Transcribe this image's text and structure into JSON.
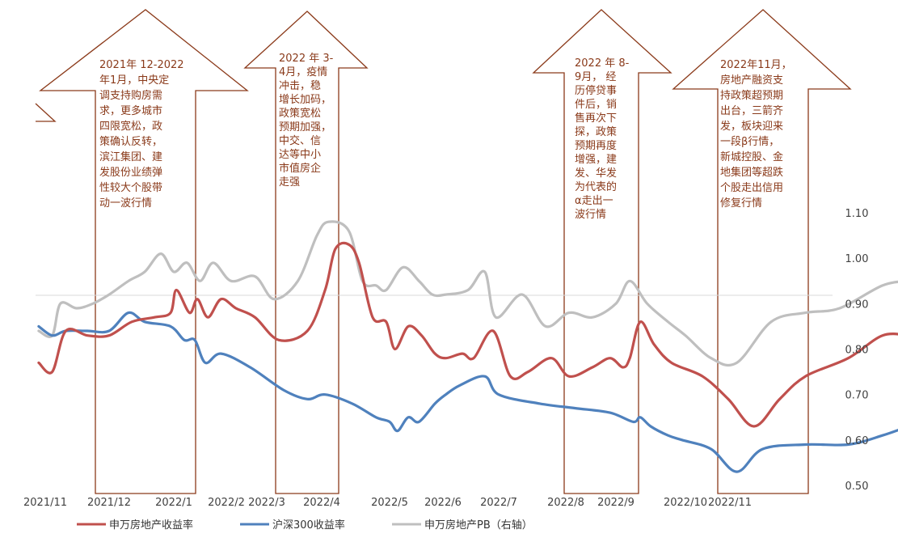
{
  "chart_data": {
    "type": "line",
    "title": "",
    "xlabel": "",
    "ylabel": "",
    "grid": false,
    "legend_position": "bottom",
    "x_tick_labels": [
      "2021/11",
      "2021/12",
      "2022/1",
      "2022/2",
      "2022/3",
      "2022/4",
      "2022/5",
      "2022/6",
      "2022/7",
      "2022/8",
      "2022/9",
      "2022/10",
      "2022/11"
    ],
    "y_right": {
      "ylim": [
        0.5,
        1.1
      ],
      "ticks": [
        "1.10",
        "1.00",
        "0.90",
        "0.80",
        "0.70",
        "0.60",
        "0.50"
      ]
    },
    "series": [
      {
        "name": "申万房地产收益率",
        "color": "#C0504D",
        "points": [
          [
            10.7,
            0.77
          ],
          [
            10.95,
            0.75
          ],
          [
            11.2,
            0.84
          ],
          [
            11.6,
            0.83
          ],
          [
            12.0,
            0.83
          ],
          [
            12.35,
            0.86
          ],
          [
            12.7,
            0.87
          ],
          [
            12.95,
            0.88
          ],
          [
            13.05,
            0.93
          ],
          [
            13.3,
            0.88
          ],
          [
            13.45,
            0.91
          ],
          [
            13.65,
            0.87
          ],
          [
            13.9,
            0.91
          ],
          [
            14.1,
            0.89
          ],
          [
            14.3,
            0.87
          ],
          [
            14.55,
            0.82
          ],
          [
            14.85,
            0.84
          ],
          [
            15.05,
            0.93
          ],
          [
            15.2,
            1.02
          ],
          [
            15.4,
            1.03
          ],
          [
            15.55,
            0.99
          ],
          [
            15.75,
            0.87
          ],
          [
            15.95,
            0.86
          ],
          [
            16.1,
            0.8
          ],
          [
            16.35,
            0.85
          ],
          [
            16.6,
            0.83
          ],
          [
            16.85,
            0.79
          ],
          [
            17.05,
            0.78
          ],
          [
            17.35,
            0.79
          ],
          [
            17.55,
            0.78
          ],
          [
            17.9,
            0.84
          ],
          [
            18.1,
            0.74
          ],
          [
            18.25,
            0.75
          ],
          [
            18.45,
            0.78
          ],
          [
            18.6,
            0.74
          ],
          [
            18.8,
            0.76
          ],
          [
            18.95,
            0.78
          ],
          [
            19.1,
            0.76
          ],
          [
            19.2,
            0.78
          ],
          [
            19.35,
            0.86
          ],
          [
            19.55,
            0.81
          ],
          [
            19.8,
            0.77
          ],
          [
            20.1,
            0.74
          ],
          [
            20.25,
            0.69
          ],
          [
            20.4,
            0.63
          ],
          [
            20.55,
            0.69
          ],
          [
            20.7,
            0.74
          ],
          [
            20.95,
            0.78
          ],
          [
            21.15,
            0.83
          ],
          [
            21.3,
            0.83
          ]
        ]
      },
      {
        "name": "沪深300收益率",
        "color": "#4F81BD",
        "points": [
          [
            10.7,
            0.85
          ],
          [
            10.95,
            0.83
          ],
          [
            11.2,
            0.84
          ],
          [
            11.6,
            0.84
          ],
          [
            12.0,
            0.84
          ],
          [
            12.3,
            0.88
          ],
          [
            12.55,
            0.86
          ],
          [
            12.95,
            0.85
          ],
          [
            13.2,
            0.82
          ],
          [
            13.4,
            0.82
          ],
          [
            13.6,
            0.77
          ],
          [
            13.9,
            0.79
          ],
          [
            14.25,
            0.76
          ],
          [
            14.6,
            0.71
          ],
          [
            14.85,
            0.69
          ],
          [
            15.05,
            0.7
          ],
          [
            15.45,
            0.68
          ],
          [
            15.8,
            0.65
          ],
          [
            16.0,
            0.64
          ],
          [
            16.15,
            0.62
          ],
          [
            16.35,
            0.65
          ],
          [
            16.55,
            0.64
          ],
          [
            16.85,
            0.68
          ],
          [
            17.05,
            0.7
          ],
          [
            17.3,
            0.72
          ],
          [
            17.75,
            0.74
          ],
          [
            18.0,
            0.7
          ],
          [
            18.35,
            0.68
          ],
          [
            18.65,
            0.67
          ],
          [
            18.95,
            0.66
          ],
          [
            19.25,
            0.64
          ],
          [
            19.35,
            0.65
          ],
          [
            19.5,
            0.63
          ],
          [
            19.75,
            0.61
          ],
          [
            19.95,
            0.6
          ],
          [
            20.15,
            0.58
          ],
          [
            20.3,
            0.53
          ],
          [
            20.45,
            0.58
          ],
          [
            20.7,
            0.59
          ],
          [
            20.95,
            0.59
          ],
          [
            21.15,
            0.61
          ],
          [
            21.3,
            0.63
          ]
        ]
      },
      {
        "name": "申万房地产PB（右轴）",
        "color": "#BFBFBF",
        "points": [
          [
            10.7,
            0.84
          ],
          [
            10.95,
            0.83
          ],
          [
            11.1,
            0.9
          ],
          [
            11.4,
            0.89
          ],
          [
            11.7,
            0.9
          ],
          [
            12.0,
            0.92
          ],
          [
            12.3,
            0.95
          ],
          [
            12.55,
            0.97
          ],
          [
            12.8,
            1.01
          ],
          [
            13.0,
            0.97
          ],
          [
            13.25,
            0.99
          ],
          [
            13.5,
            0.95
          ],
          [
            13.75,
            0.99
          ],
          [
            14.05,
            0.95
          ],
          [
            14.3,
            0.96
          ],
          [
            14.5,
            0.91
          ],
          [
            14.75,
            0.95
          ],
          [
            14.95,
            1.05
          ],
          [
            15.1,
            1.08
          ],
          [
            15.4,
            1.06
          ],
          [
            15.6,
            0.95
          ],
          [
            15.8,
            0.94
          ],
          [
            15.95,
            0.93
          ],
          [
            16.25,
            0.98
          ],
          [
            16.55,
            0.95
          ],
          [
            16.8,
            0.92
          ],
          [
            17.05,
            0.92
          ],
          [
            17.45,
            0.93
          ],
          [
            17.75,
            0.97
          ],
          [
            17.95,
            0.87
          ],
          [
            18.2,
            0.92
          ],
          [
            18.4,
            0.85
          ],
          [
            18.6,
            0.88
          ],
          [
            18.8,
            0.87
          ],
          [
            19.0,
            0.9
          ],
          [
            19.2,
            0.95
          ],
          [
            19.45,
            0.9
          ],
          [
            19.75,
            0.86
          ],
          [
            20.0,
            0.83
          ],
          [
            20.15,
            0.78
          ],
          [
            20.3,
            0.77
          ],
          [
            20.5,
            0.86
          ],
          [
            20.7,
            0.88
          ],
          [
            20.9,
            0.89
          ],
          [
            21.15,
            0.94
          ],
          [
            21.3,
            0.95
          ]
        ]
      }
    ],
    "annotations": [
      {
        "lines": [
          "2021年 12-2022",
          "年1月，中央定",
          "调支持购房需",
          "求，更多城市",
          "四限宽松，政",
          "策确认反转，",
          "滨江集团、建",
          "发股份业绩弹",
          "性较大个股带",
          "动一波行情"
        ]
      },
      {
        "lines": [
          "2022 年 3-",
          "4月，疫情",
          "冲击，稳",
          "增长加码，",
          "政策宽松",
          "预期加强，",
          "中交、信",
          "达等中小",
          "市值房企",
          "走强"
        ]
      },
      {
        "lines": [
          "2022 年 8-",
          "9月，  经",
          "历停贷事",
          "件后，销",
          "售再次下",
          "探，政策",
          "预期再度",
          "增强，建",
          "发、华发",
          "为代表的",
          "α走出一",
          "波行情"
        ]
      },
      {
        "lines": [
          "2022年11月，",
          "房地产融资支",
          "持政策超预期",
          "出台，三箭齐",
          "发，板块迎来",
          "一段β行情，",
          "新城控股、金",
          "地集团等超跌",
          "个股走出信用",
          "修复行情"
        ]
      }
    ]
  }
}
